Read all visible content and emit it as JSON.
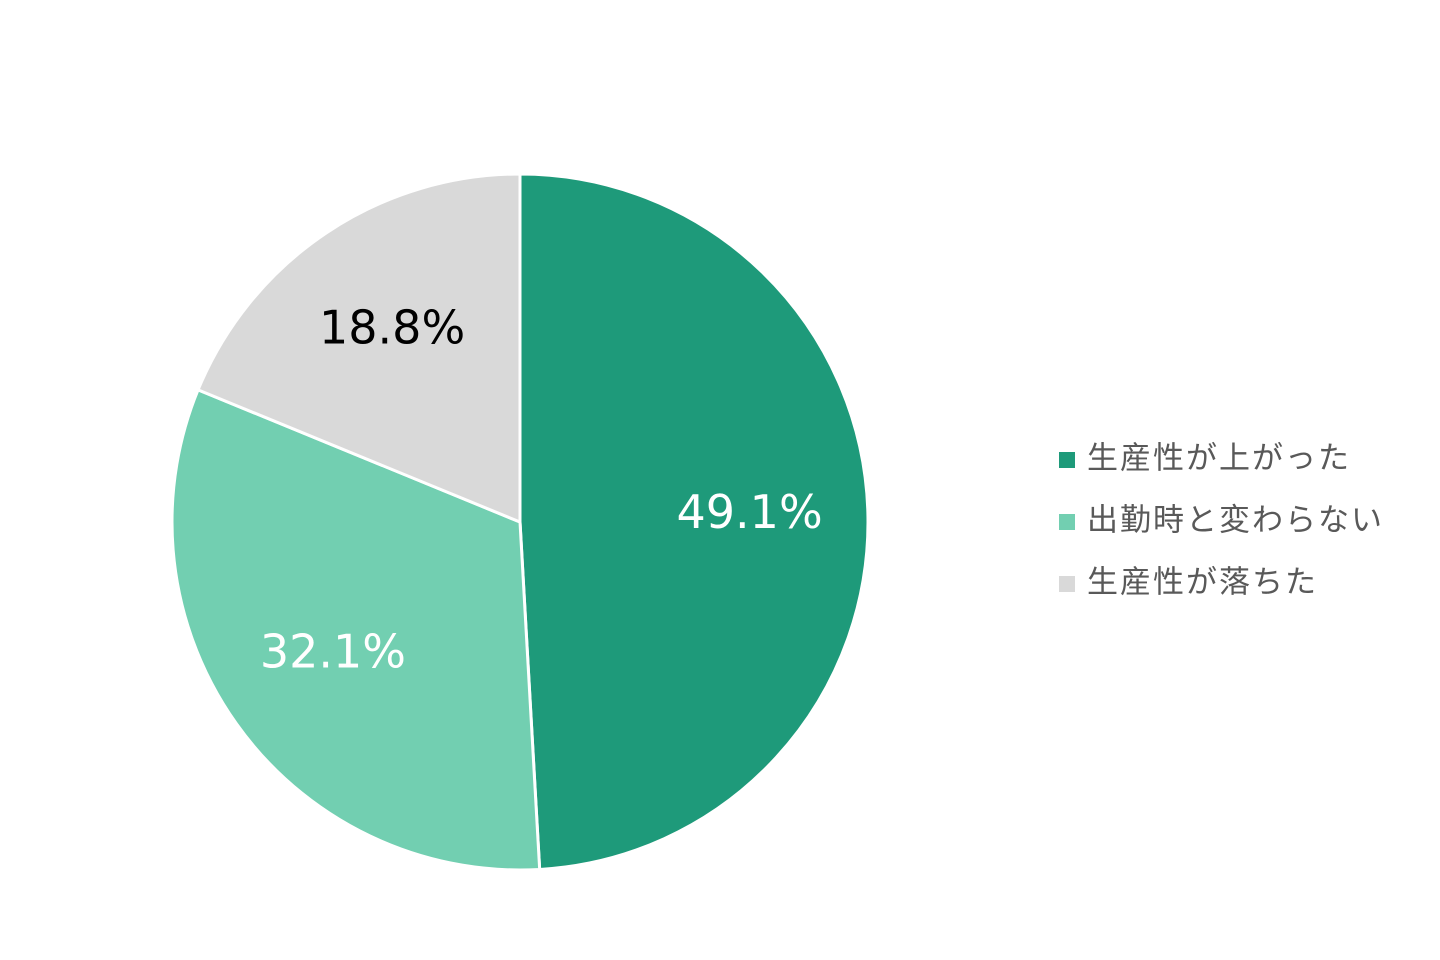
{
  "chart_data": {
    "type": "pie",
    "categories": [
      "生産性が上がった",
      "出勤時と変わらない",
      "生産性が落ちた"
    ],
    "values": [
      49.1,
      32.1,
      18.8
    ],
    "value_labels": [
      "49.1%",
      "32.1%",
      "18.8%"
    ],
    "colors": [
      "#1e9a7a",
      "#72cfb1",
      "#d9d9d9"
    ],
    "value_label_colors": [
      "#ffffff",
      "#ffffff",
      "#000000"
    ],
    "legend": "right"
  }
}
